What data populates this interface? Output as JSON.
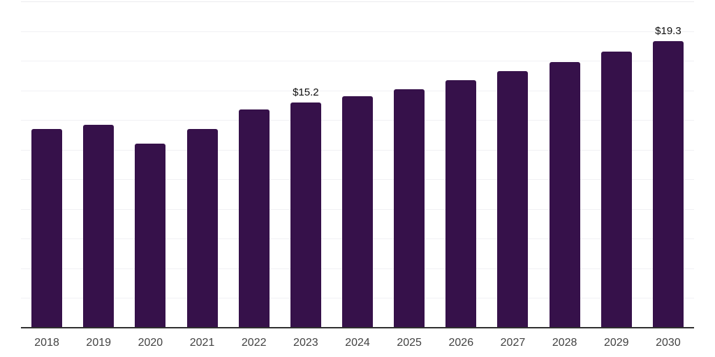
{
  "chart_data": {
    "type": "bar",
    "title": "",
    "xlabel": "",
    "ylabel": "",
    "categories": [
      "2018",
      "2019",
      "2020",
      "2021",
      "2022",
      "2023",
      "2024",
      "2025",
      "2026",
      "2027",
      "2028",
      "2029",
      "2030"
    ],
    "values": [
      13.4,
      13.7,
      12.4,
      13.4,
      14.7,
      15.2,
      15.6,
      16.1,
      16.7,
      17.3,
      17.9,
      18.6,
      19.3
    ],
    "value_prefix": "$",
    "data_labels": {
      "2023": "$15.2",
      "2030": "$19.3"
    },
    "ylim": [
      0,
      22
    ],
    "grid_step": 2,
    "grid": "horizontal-only",
    "legend": "none",
    "colors": {
      "bar": "#36114A",
      "axis_line": "#2F2F2F",
      "gridline": "#F1F1F4",
      "gridline_top": "#EBEBEE",
      "x_label": "#424242",
      "data_label": "#0D0D0D",
      "background": "#FFFFFF"
    }
  }
}
